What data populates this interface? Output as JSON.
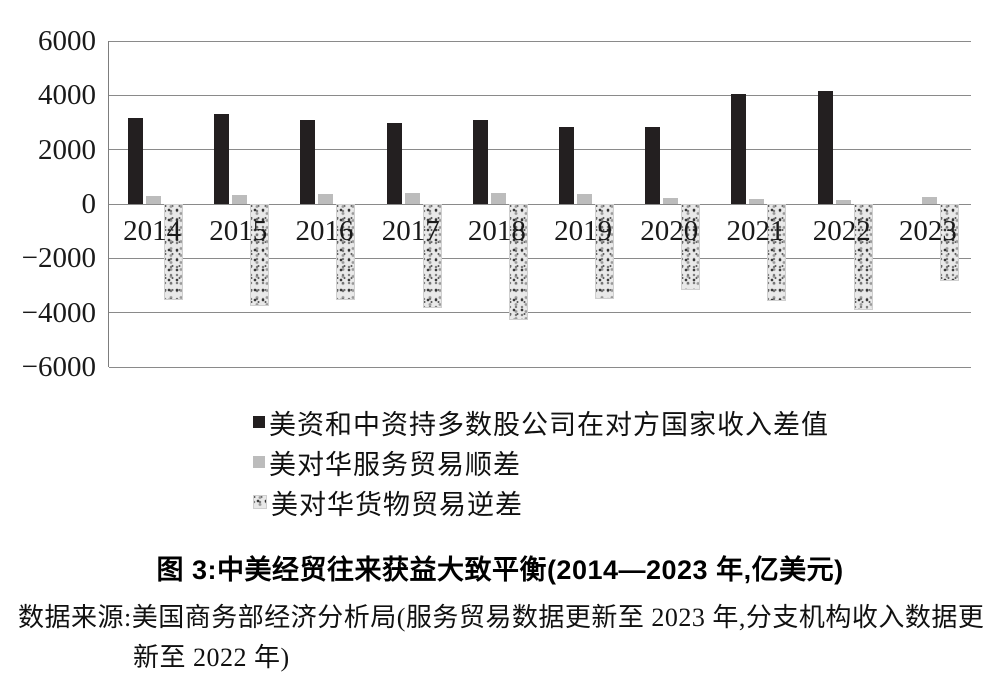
{
  "figure": {
    "title": "图 3:中美经贸往来获益大致平衡(2014—2023 年,亿美元)",
    "source_line1": "数据来源:美国商务部经济分析局(服务贸易数据更新至 2023 年,分支机构收入数据更",
    "source_line2": "新至 2022 年)"
  },
  "chart_data": {
    "type": "bar",
    "title": "图 3:中美经贸往来获益大致平衡(2014—2023 年,亿美元)",
    "unit": "亿美元",
    "categories": [
      "2014",
      "2015",
      "2016",
      "2017",
      "2018",
      "2019",
      "2020",
      "2021",
      "2022",
      "2023"
    ],
    "series": [
      {
        "name": "美资和中资持多数股公司在对方国家收入差值",
        "key": "income-differential",
        "style": "solid-black",
        "color": "#231f20",
        "values": [
          3150,
          3300,
          3100,
          3000,
          3100,
          2850,
          2850,
          4050,
          4150,
          null
        ]
      },
      {
        "name": "美对华服务贸易顺差",
        "key": "services-surplus",
        "style": "solid-gray",
        "color": "#bcbcbc",
        "values": [
          280,
          330,
          370,
          400,
          410,
          380,
          230,
          180,
          140,
          270
        ]
      },
      {
        "name": "美对华货物贸易逆差",
        "key": "goods-deficit",
        "style": "speckled",
        "color": "#e9e9e9",
        "values": [
          -3450,
          -3680,
          -3450,
          -3740,
          -4180,
          -3440,
          -3080,
          -3510,
          -3840,
          -2770
        ]
      }
    ],
    "ylim": [
      -6000,
      6000
    ],
    "yticks": [
      6000,
      4000,
      2000,
      0,
      -2000,
      -4000,
      -6000
    ],
    "grid": "horizontal",
    "legend_position": "below-left",
    "gridline_color": "#8a8a8a"
  }
}
